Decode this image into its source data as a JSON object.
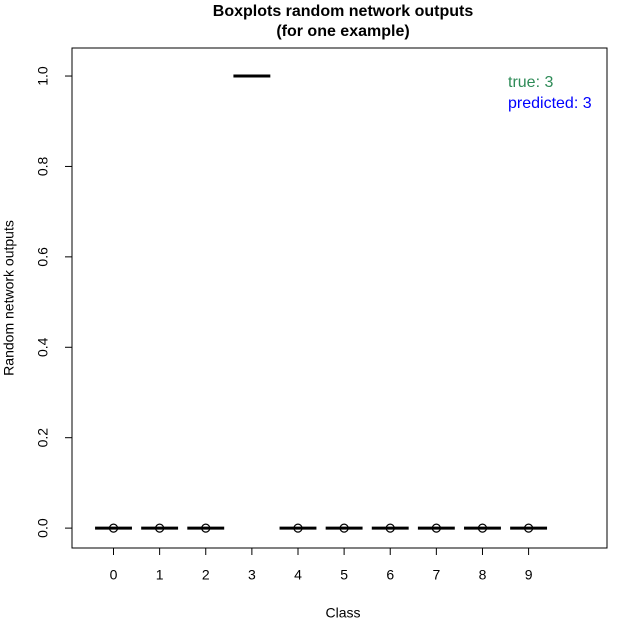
{
  "chart_data": {
    "type": "box",
    "title": "Boxplots  random network outputs",
    "subtitle": "(for one example)",
    "x_label": "Class",
    "y_label": "Random network outputs",
    "categories": [
      "0",
      "1",
      "2",
      "3",
      "4",
      "5",
      "6",
      "7",
      "8",
      "9"
    ],
    "medians": [
      0,
      0,
      0,
      1,
      0,
      0,
      0,
      0,
      0,
      0
    ],
    "outliers": [
      [
        0
      ],
      [
        0
      ],
      [
        0
      ],
      [],
      [
        0
      ],
      [
        0
      ],
      [
        0
      ],
      [
        0
      ],
      [
        0
      ],
      [
        0
      ]
    ],
    "color": "#000000",
    "ylim": [
      -0.044,
      1.062
    ],
    "yticks": [
      {
        "value": 0,
        "label": "0.0"
      },
      0.2,
      0.4,
      0.6,
      0.8,
      {
        "value": 1,
        "label": "1.0"
      }
    ],
    "annotations": [
      {
        "text": "true:  3",
        "color": "#2e8b57"
      },
      {
        "text": "predicted:  3",
        "color": "#0000ff"
      }
    ]
  }
}
